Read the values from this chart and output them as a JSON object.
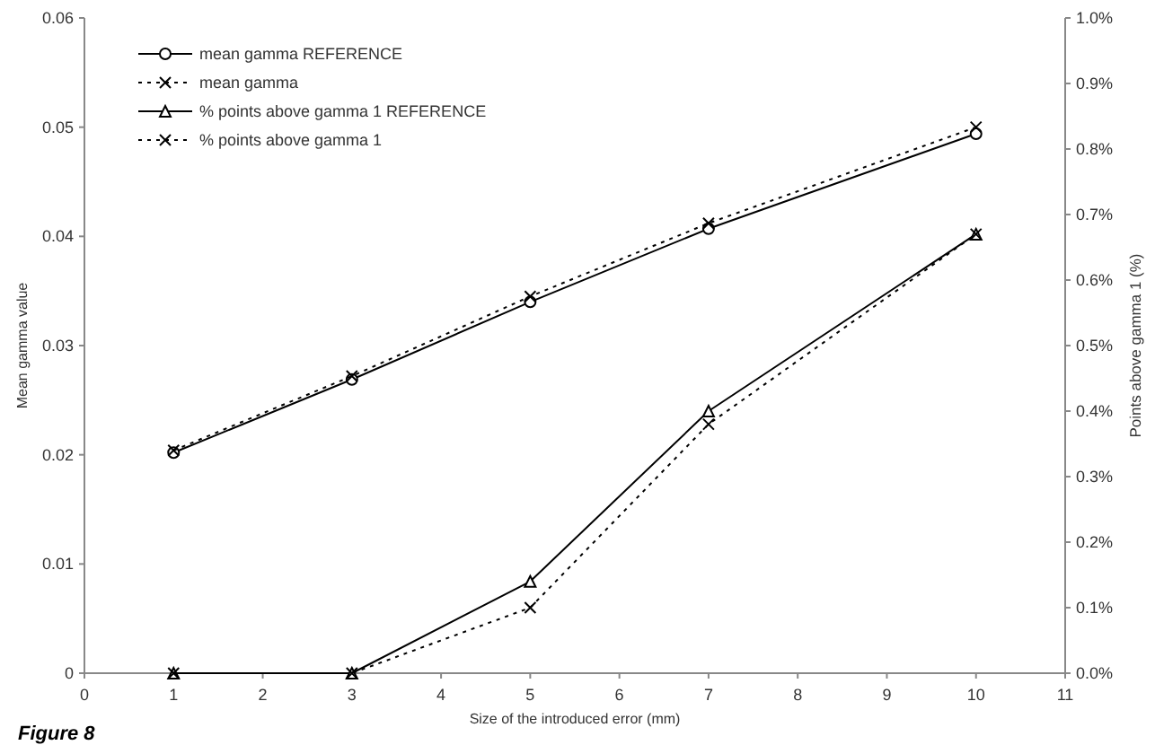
{
  "chart_data": {
    "type": "line",
    "xlabel": "Size of the introduced error (mm)",
    "ylabel": "Mean gamma value",
    "y2label": "Points above gamma 1 (%)",
    "xlim": [
      0,
      11
    ],
    "xticks": [
      0,
      1,
      2,
      3,
      4,
      5,
      6,
      7,
      8,
      9,
      10,
      11
    ],
    "ylim": [
      0,
      0.06
    ],
    "yticks": [
      0,
      0.01,
      0.02,
      0.03,
      0.04,
      0.05,
      0.06
    ],
    "y2lim": [
      0,
      1
    ],
    "y2ticks": [
      {
        "value": 0,
        "label": "0.0%"
      },
      {
        "value": 0.1,
        "label": "0.1%"
      },
      {
        "value": 0.2,
        "label": "0.2%"
      },
      {
        "value": 0.3,
        "label": "0.3%"
      },
      {
        "value": 0.4,
        "label": "0.4%"
      },
      {
        "value": 0.5,
        "label": "0.5%"
      },
      {
        "value": 0.6,
        "label": "0.6%"
      },
      {
        "value": 0.7,
        "label": "0.7%"
      },
      {
        "value": 0.8,
        "label": "0.8%"
      },
      {
        "value": 0.9,
        "label": "0.9%"
      },
      {
        "value": 1,
        "label": "1.0%"
      }
    ],
    "x": [
      1,
      3,
      5,
      7,
      10
    ],
    "legend": "top left",
    "grid": false,
    "annotations": [
      "Figure 8"
    ],
    "series": [
      {
        "name": "mean gamma REFERENCE",
        "color": "#000000",
        "values": [
          0.0202,
          0.0269,
          0.034,
          0.0407,
          0.0494
        ],
        "marker": "circle",
        "line_style": "solid"
      },
      {
        "name": "mean gamma",
        "color": "#000000",
        "values": [
          0.0204,
          0.0272,
          0.0345,
          0.0412,
          0.05
        ],
        "marker": "cross",
        "line_style": "dotted"
      },
      {
        "name": "% points above gamma 1 REFERENCE",
        "color": "#000000",
        "values": [
          0,
          0,
          0.14,
          0.4,
          0.67
        ],
        "marker": "triangle",
        "line_style": "solid",
        "axis": "y2"
      },
      {
        "name": "% points above gamma 1",
        "color": "#000000",
        "values": [
          0,
          0,
          0.1,
          0.38,
          0.67
        ],
        "marker": "cross",
        "line_style": "dotted",
        "axis": "y2"
      }
    ]
  }
}
